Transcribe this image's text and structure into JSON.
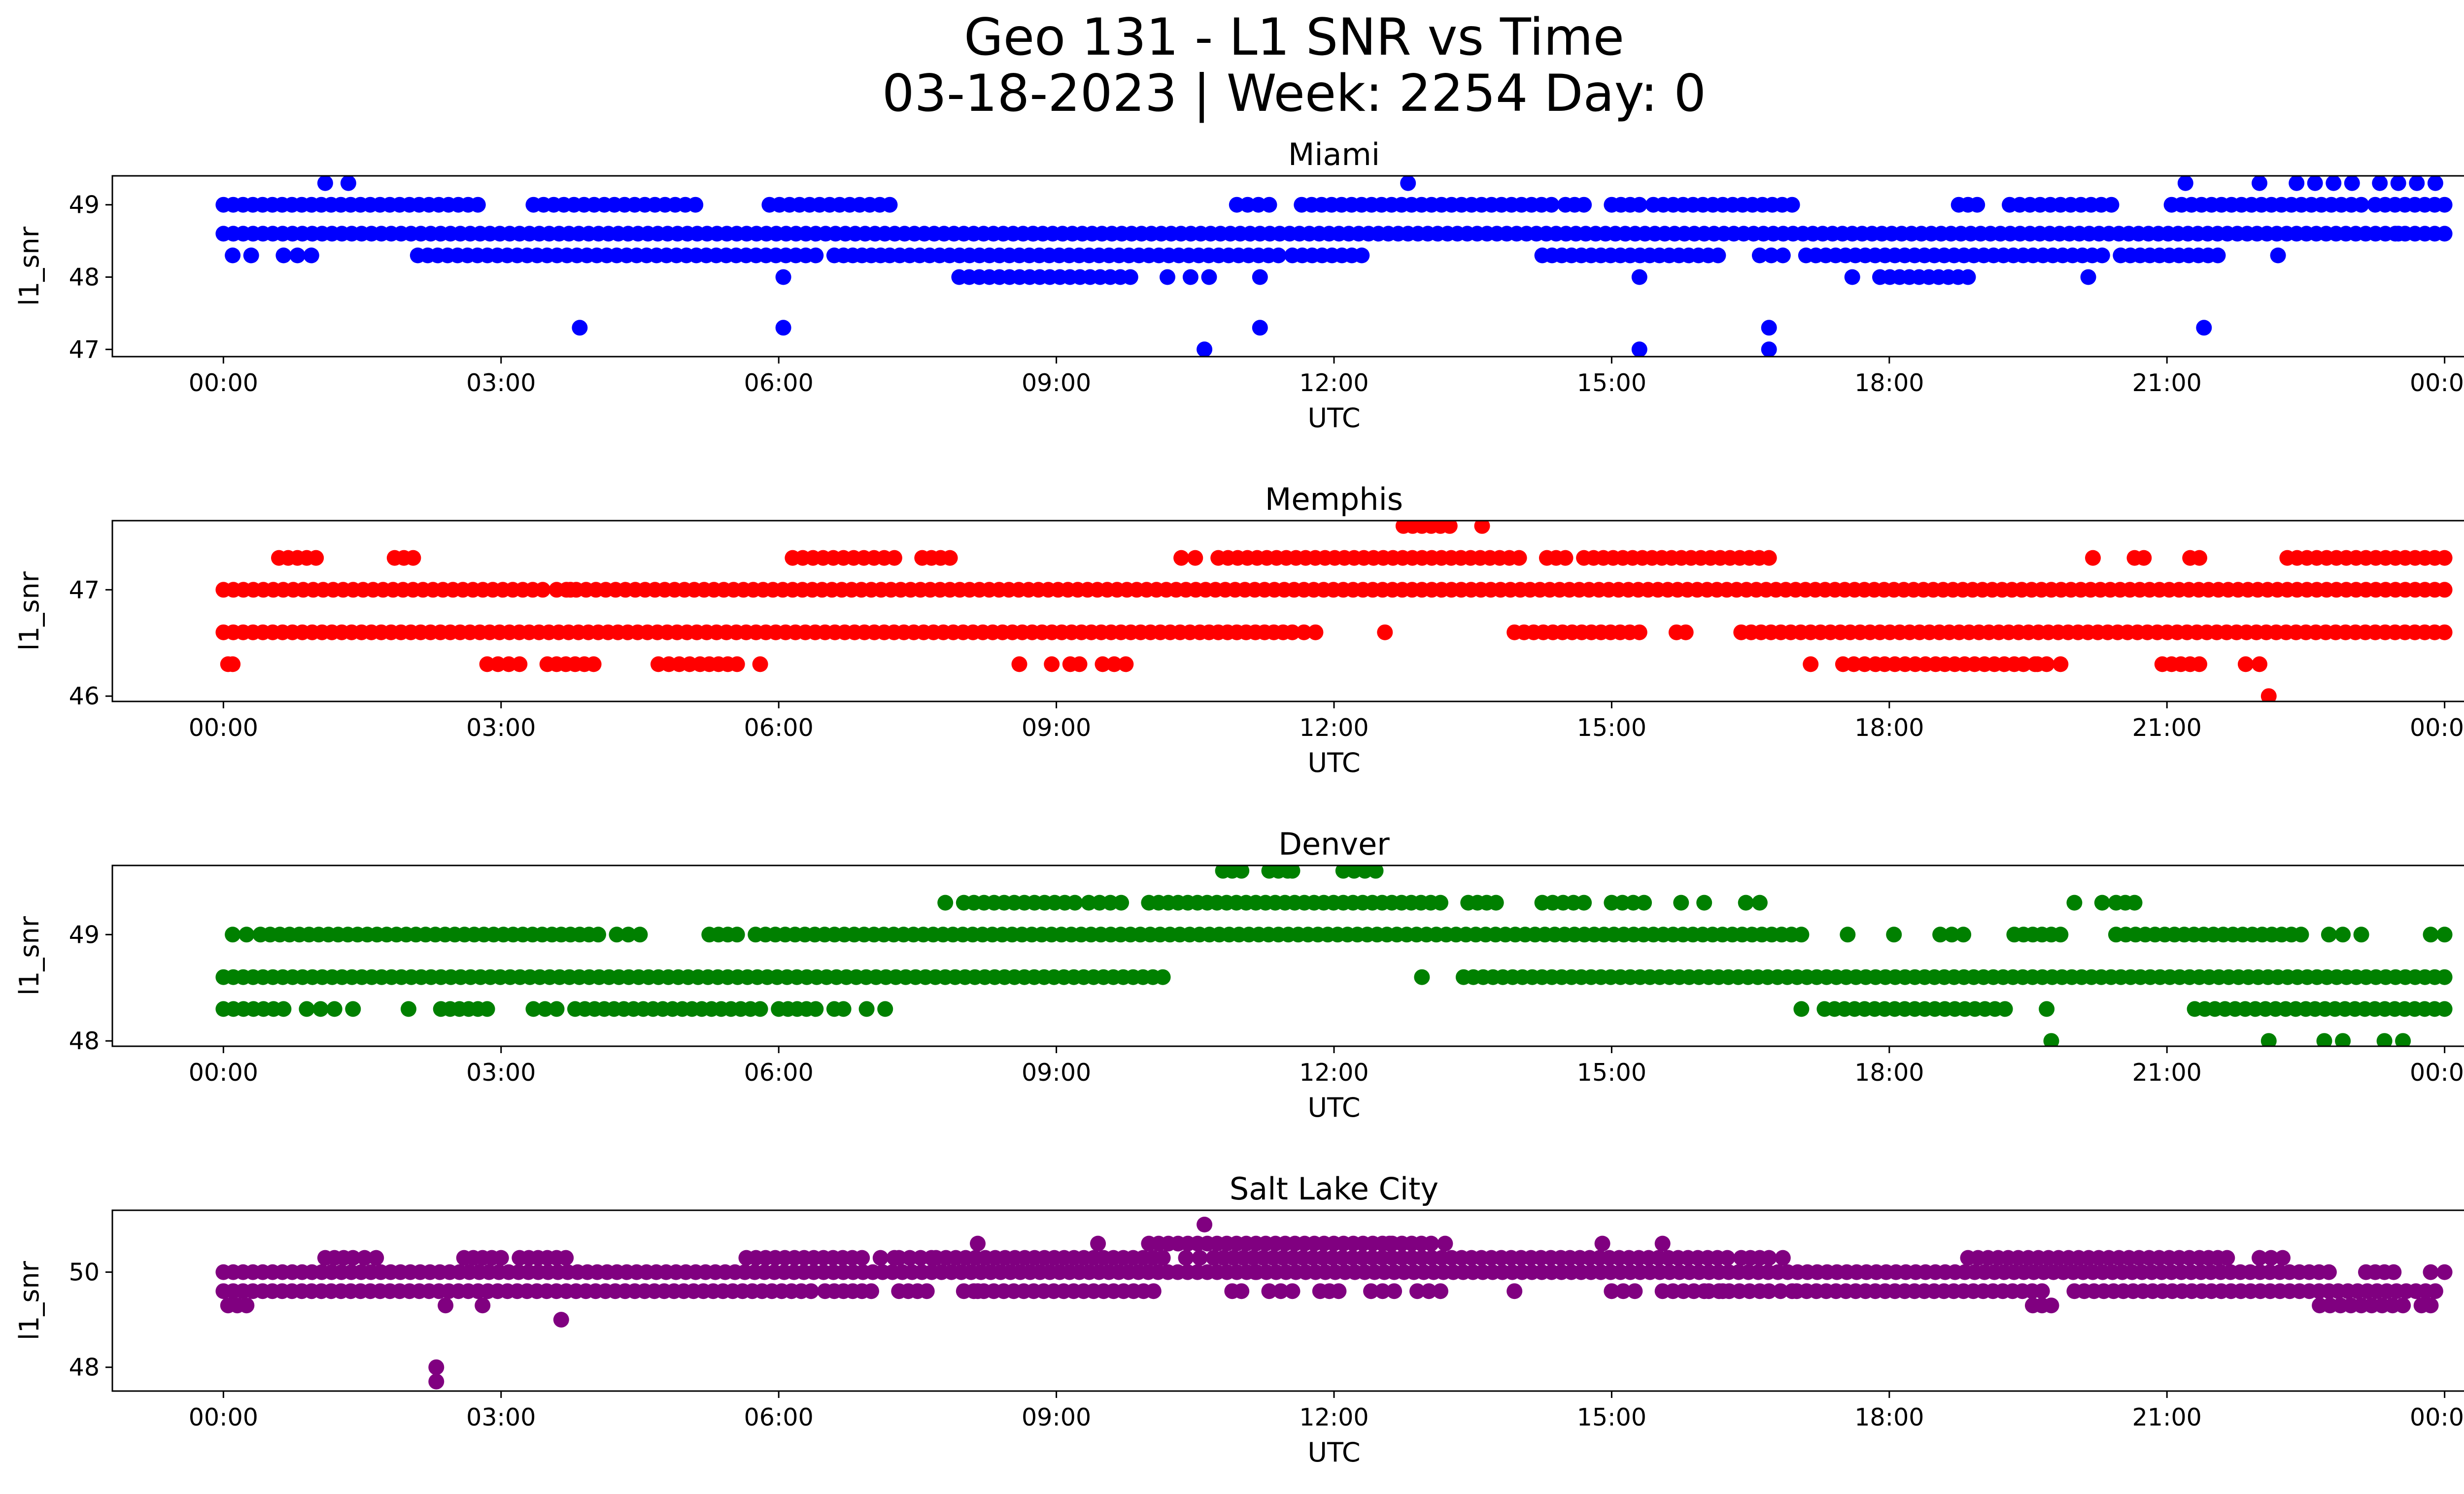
{
  "figure": {
    "title_line1": "Geo 131 - L1 SNR vs Time",
    "title_line2": "03-18-2023 | Week: 2254 Day: 0"
  },
  "chart_data": [
    {
      "type": "scatter",
      "title": "Miami",
      "xlabel": "UTC",
      "ylabel": "l1_snr",
      "color": "#0000ff",
      "xlim": [
        "23:59",
        "01:28 next day"
      ],
      "ylim": [
        46.9,
        49.4
      ],
      "xtick_labels": [
        "00:00",
        "03:00",
        "06:00",
        "09:00",
        "12:00",
        "15:00",
        "18:00",
        "21:00",
        "00:00"
      ],
      "yticks": [
        47,
        48,
        49
      ],
      "bands": [
        {
          "y": 49.0,
          "segments": [
            [
              0.0,
              2.75
            ],
            [
              3.35,
              5.1
            ],
            [
              5.9,
              7.2
            ],
            [
              10.95,
              11.3
            ],
            [
              11.65,
              14.35
            ],
            [
              14.5,
              14.7
            ],
            [
              15.0,
              15.3
            ],
            [
              15.45,
              16.95
            ],
            [
              18.75,
              18.95
            ],
            [
              19.3,
              20.4
            ],
            [
              21.05,
              23.1
            ],
            [
              23.25,
              24.0
            ]
          ]
        },
        {
          "y": 48.6,
          "segments": [
            [
              0.0,
              24.0
            ]
          ]
        },
        {
          "y": 48.3,
          "segments": [
            [
              2.1,
              6.4
            ],
            [
              6.6,
              7.1
            ],
            [
              7.2,
              11.4
            ],
            [
              11.55,
              12.3
            ],
            [
              14.25,
              16.15
            ],
            [
              16.6,
              16.85
            ],
            [
              17.1,
              20.3
            ],
            [
              20.5,
              21.55
            ]
          ]
        },
        {
          "y": 48.0,
          "segments": [
            [
              7.95,
              9.8
            ],
            [
              17.9,
              18.85
            ]
          ]
        }
      ],
      "points": [
        {
          "x": 0.1,
          "y": 48.3
        },
        {
          "x": 0.3,
          "y": 48.3
        },
        {
          "x": 0.65,
          "y": 48.3
        },
        {
          "x": 0.8,
          "y": 48.3
        },
        {
          "x": 0.95,
          "y": 48.3
        },
        {
          "x": 1.1,
          "y": 49.3
        },
        {
          "x": 1.35,
          "y": 49.3
        },
        {
          "x": 3.85,
          "y": 47.3
        },
        {
          "x": 6.05,
          "y": 48.0
        },
        {
          "x": 6.05,
          "y": 47.3
        },
        {
          "x": 8.75,
          "y": 48.6
        },
        {
          "x": 10.2,
          "y": 48.0
        },
        {
          "x": 10.45,
          "y": 48.0
        },
        {
          "x": 10.6,
          "y": 47.0
        },
        {
          "x": 10.65,
          "y": 48.0
        },
        {
          "x": 11.2,
          "y": 48.0
        },
        {
          "x": 11.2,
          "y": 47.3
        },
        {
          "x": 12.8,
          "y": 49.3
        },
        {
          "x": 15.3,
          "y": 48.0
        },
        {
          "x": 15.3,
          "y": 47.0
        },
        {
          "x": 16.7,
          "y": 47.3
        },
        {
          "x": 16.7,
          "y": 47.0
        },
        {
          "x": 17.6,
          "y": 48.0
        },
        {
          "x": 20.15,
          "y": 48.0
        },
        {
          "x": 21.2,
          "y": 49.3
        },
        {
          "x": 21.4,
          "y": 47.3
        },
        {
          "x": 22.0,
          "y": 49.3
        },
        {
          "x": 22.2,
          "y": 48.3
        },
        {
          "x": 22.4,
          "y": 49.3
        },
        {
          "x": 22.6,
          "y": 49.3
        },
        {
          "x": 22.8,
          "y": 49.3
        },
        {
          "x": 23.0,
          "y": 49.3
        },
        {
          "x": 23.3,
          "y": 49.3
        },
        {
          "x": 23.5,
          "y": 49.3
        },
        {
          "x": 23.7,
          "y": 49.3
        },
        {
          "x": 23.9,
          "y": 49.3
        },
        {
          "x": 23.5,
          "y": 48.6
        }
      ]
    },
    {
      "type": "scatter",
      "title": "Memphis",
      "xlabel": "UTC",
      "ylabel": "l1_snr",
      "color": "#ff0000",
      "xlim": [
        "23:59",
        "01:28 next day"
      ],
      "ylim": [
        45.95,
        47.65
      ],
      "xtick_labels": [
        "00:00",
        "03:00",
        "06:00",
        "09:00",
        "12:00",
        "15:00",
        "18:00",
        "21:00",
        "00:00"
      ],
      "yticks": [
        46,
        47
      ],
      "bands": [
        {
          "y": 47.3,
          "segments": [
            [
              0.6,
              1.0
            ],
            [
              1.85,
              2.05
            ],
            [
              6.15,
              7.25
            ],
            [
              7.55,
              7.85
            ],
            [
              10.35,
              10.5
            ],
            [
              10.75,
              14.0
            ],
            [
              14.3,
              14.5
            ],
            [
              14.7,
              16.7
            ],
            [
              22.3,
              24.0
            ]
          ]
        },
        {
          "y": 47.0,
          "segments": [
            [
              0.0,
              3.45
            ],
            [
              3.6,
              24.0
            ]
          ]
        },
        {
          "y": 46.6,
          "segments": [
            [
              0.0,
              10.55
            ],
            [
              10.65,
              11.45
            ],
            [
              11.55,
              11.8
            ],
            [
              13.95,
              15.3
            ],
            [
              15.7,
              15.8
            ],
            [
              16.4,
              24.0
            ]
          ]
        },
        {
          "y": 46.3,
          "segments": [
            [
              2.85,
              3.2
            ],
            [
              3.5,
              4.0
            ],
            [
              4.7,
              5.15
            ],
            [
              5.25,
              5.55
            ],
            [
              9.5,
              9.75
            ],
            [
              17.5,
              17.85
            ],
            [
              17.95,
              18.5
            ],
            [
              18.6,
              19.35
            ],
            [
              19.45,
              19.7
            ],
            [
              20.95,
              21.35
            ],
            [
              21.85,
              22.0
            ]
          ]
        }
      ],
      "points": [
        {
          "x": 0.05,
          "y": 46.3
        },
        {
          "x": 0.1,
          "y": 46.3
        },
        {
          "x": 3.75,
          "y": 47.0
        },
        {
          "x": 5.8,
          "y": 46.3
        },
        {
          "x": 8.6,
          "y": 46.3
        },
        {
          "x": 8.95,
          "y": 46.3
        },
        {
          "x": 9.15,
          "y": 46.3
        },
        {
          "x": 9.25,
          "y": 46.3
        },
        {
          "x": 12.55,
          "y": 46.6
        },
        {
          "x": 12.75,
          "y": 47.6
        },
        {
          "x": 12.85,
          "y": 47.6
        },
        {
          "x": 12.95,
          "y": 47.6
        },
        {
          "x": 13.05,
          "y": 47.6
        },
        {
          "x": 13.15,
          "y": 47.6
        },
        {
          "x": 13.25,
          "y": 47.6
        },
        {
          "x": 13.6,
          "y": 47.6
        },
        {
          "x": 17.15,
          "y": 46.3
        },
        {
          "x": 19.6,
          "y": 46.3
        },
        {
          "x": 19.85,
          "y": 46.3
        },
        {
          "x": 20.2,
          "y": 47.3
        },
        {
          "x": 20.65,
          "y": 47.3
        },
        {
          "x": 20.75,
          "y": 47.3
        },
        {
          "x": 21.25,
          "y": 47.3
        },
        {
          "x": 21.35,
          "y": 47.3
        },
        {
          "x": 22.1,
          "y": 46.0
        }
      ]
    },
    {
      "type": "scatter",
      "title": "Denver",
      "xlabel": "UTC",
      "ylabel": "l1_snr",
      "color": "#008000",
      "xlim": [
        "23:59",
        "01:28 next day"
      ],
      "ylim": [
        47.95,
        49.65
      ],
      "xtick_labels": [
        "00:00",
        "03:00",
        "06:00",
        "09:00",
        "12:00",
        "15:00",
        "18:00",
        "21:00",
        "00:00"
      ],
      "yticks": [
        48,
        49
      ],
      "bands": [
        {
          "y": 49.6,
          "segments": [
            [
              10.8,
              11.0
            ],
            [
              11.3,
              11.5
            ],
            [
              12.1,
              12.45
            ]
          ]
        },
        {
          "y": 49.3,
          "segments": [
            [
              8.0,
              9.2
            ],
            [
              9.35,
              9.7
            ],
            [
              10.0,
              13.15
            ],
            [
              13.45,
              13.75
            ],
            [
              14.25,
              14.7
            ],
            [
              15.0,
              15.35
            ],
            [
              16.45,
              16.6
            ],
            [
              20.45,
              20.65
            ]
          ]
        },
        {
          "y": 49.0,
          "segments": [
            [
              0.1,
              0.25
            ],
            [
              0.4,
              3.55
            ],
            [
              3.65,
              4.05
            ],
            [
              4.25,
              4.5
            ],
            [
              5.25,
              5.55
            ],
            [
              5.75,
              17.05
            ],
            [
              18.55,
              18.8
            ],
            [
              19.35,
              19.85
            ],
            [
              20.45,
              22.45
            ],
            [
              22.75,
              22.9
            ],
            [
              23.85,
              24.0
            ]
          ]
        },
        {
          "y": 48.6,
          "segments": [
            [
              0.0,
              10.15
            ],
            [
              13.4,
              24.0
            ]
          ]
        },
        {
          "y": 48.3,
          "segments": [
            [
              0.0,
              0.65
            ],
            [
              2.35,
              2.85
            ],
            [
              3.35,
              3.6
            ],
            [
              3.8,
              5.8
            ],
            [
              6.0,
              6.4
            ],
            [
              17.3,
              19.25
            ],
            [
              21.3,
              22.5
            ],
            [
              22.6,
              24.0
            ]
          ]
        }
      ],
      "points": [
        {
          "x": 0.9,
          "y": 48.3
        },
        {
          "x": 1.05,
          "y": 48.3
        },
        {
          "x": 1.2,
          "y": 48.3
        },
        {
          "x": 1.4,
          "y": 48.3
        },
        {
          "x": 2.0,
          "y": 48.3
        },
        {
          "x": 6.6,
          "y": 48.3
        },
        {
          "x": 6.7,
          "y": 48.3
        },
        {
          "x": 6.95,
          "y": 48.3
        },
        {
          "x": 7.15,
          "y": 48.3
        },
        {
          "x": 7.8,
          "y": 49.3
        },
        {
          "x": 12.95,
          "y": 48.6
        },
        {
          "x": 11.55,
          "y": 49.6
        },
        {
          "x": 15.75,
          "y": 49.3
        },
        {
          "x": 16.0,
          "y": 49.3
        },
        {
          "x": 17.05,
          "y": 48.3
        },
        {
          "x": 17.55,
          "y": 49.0
        },
        {
          "x": 18.05,
          "y": 49.0
        },
        {
          "x": 19.7,
          "y": 48.3
        },
        {
          "x": 19.75,
          "y": 48.0
        },
        {
          "x": 20.0,
          "y": 49.3
        },
        {
          "x": 20.3,
          "y": 49.3
        },
        {
          "x": 22.1,
          "y": 48.0
        },
        {
          "x": 22.7,
          "y": 48.0
        },
        {
          "x": 22.9,
          "y": 48.0
        },
        {
          "x": 23.35,
          "y": 48.0
        },
        {
          "x": 23.55,
          "y": 48.0
        },
        {
          "x": 23.1,
          "y": 49.0
        }
      ]
    },
    {
      "type": "scatter",
      "title": "Salt Lake City",
      "xlabel": "UTC",
      "ylabel": "l1_snr",
      "color": "#800080",
      "xlim": [
        "23:59",
        "01:28 next day"
      ],
      "ylim": [
        47.5,
        51.3
      ],
      "xtick_labels": [
        "00:00",
        "03:00",
        "06:00",
        "09:00",
        "12:00",
        "15:00",
        "18:00",
        "21:00",
        "00:00"
      ],
      "yticks": [
        48,
        50
      ],
      "bands": [
        {
          "y": 50.6,
          "segments": [
            [
              10.0,
              13.05
            ]
          ]
        },
        {
          "y": 50.3,
          "segments": [
            [
              1.1,
              1.3
            ],
            [
              1.4,
              1.65
            ],
            [
              2.6,
              3.0
            ],
            [
              3.2,
              3.7
            ],
            [
              5.65,
              6.9
            ],
            [
              7.1,
              7.25
            ],
            [
              7.3,
              7.65
            ],
            [
              7.7,
              10.15
            ],
            [
              10.4,
              10.55
            ],
            [
              10.7,
              14.45
            ],
            [
              14.55,
              16.25
            ],
            [
              16.4,
              16.7
            ],
            [
              18.85,
              21.35
            ],
            [
              21.45,
              21.65
            ],
            [
              22.0,
              22.25
            ]
          ]
        },
        {
          "y": 50.0,
          "segments": [
            [
              0.0,
              22.75
            ],
            [
              23.15,
              23.45
            ],
            [
              23.85,
              24.0
            ]
          ]
        },
        {
          "y": 49.6,
          "segments": [
            [
              0.0,
              6.35
            ],
            [
              6.5,
              7.0
            ],
            [
              7.3,
              7.6
            ],
            [
              8.0,
              10.05
            ],
            [
              10.9,
              11.0
            ],
            [
              11.3,
              11.55
            ],
            [
              11.85,
              12.05
            ],
            [
              12.4,
              12.65
            ],
            [
              12.9,
              13.15
            ],
            [
              15.0,
              15.25
            ],
            [
              15.55,
              16.0
            ],
            [
              16.05,
              16.6
            ],
            [
              16.7,
              16.95
            ],
            [
              17.0,
              19.65
            ],
            [
              20.0,
              22.75
            ],
            [
              22.85,
              23.9
            ]
          ]
        },
        {
          "y": 49.3,
          "segments": [
            [
              0.05,
              0.25
            ],
            [
              19.55,
              19.75
            ],
            [
              22.65,
              23.55
            ],
            [
              23.75,
              23.85
            ]
          ]
        }
      ],
      "points": [
        {
          "x": 2.4,
          "y": 49.3
        },
        {
          "x": 2.8,
          "y": 49.3
        },
        {
          "x": 2.3,
          "y": 48.0
        },
        {
          "x": 2.3,
          "y": 47.7
        },
        {
          "x": 3.65,
          "y": 49.0
        },
        {
          "x": 8.15,
          "y": 49.6
        },
        {
          "x": 8.15,
          "y": 50.6
        },
        {
          "x": 9.45,
          "y": 50.6
        },
        {
          "x": 10.6,
          "y": 51.0
        },
        {
          "x": 11.15,
          "y": 50.0
        },
        {
          "x": 12.6,
          "y": 50.6
        },
        {
          "x": 13.2,
          "y": 50.6
        },
        {
          "x": 13.95,
          "y": 49.6
        },
        {
          "x": 14.9,
          "y": 50.6
        },
        {
          "x": 15.55,
          "y": 50.6
        },
        {
          "x": 16.85,
          "y": 50.3
        },
        {
          "x": 16.2,
          "y": 49.6
        }
      ]
    }
  ]
}
